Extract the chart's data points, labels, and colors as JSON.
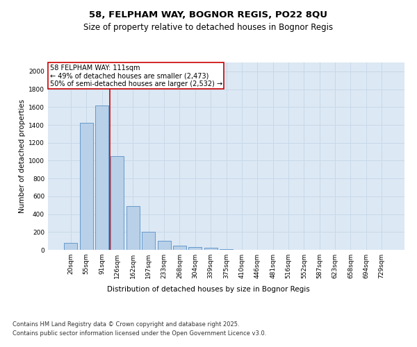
{
  "title_line1": "58, FELPHAM WAY, BOGNOR REGIS, PO22 8QU",
  "title_line2": "Size of property relative to detached houses in Bognor Regis",
  "xlabel": "Distribution of detached houses by size in Bognor Regis",
  "ylabel": "Number of detached properties",
  "categories": [
    "20sqm",
    "55sqm",
    "91sqm",
    "126sqm",
    "162sqm",
    "197sqm",
    "233sqm",
    "268sqm",
    "304sqm",
    "339sqm",
    "375sqm",
    "410sqm",
    "446sqm",
    "481sqm",
    "516sqm",
    "552sqm",
    "587sqm",
    "623sqm",
    "658sqm",
    "694sqm",
    "729sqm"
  ],
  "values": [
    75,
    1420,
    1620,
    1050,
    490,
    200,
    100,
    50,
    30,
    20,
    10,
    0,
    0,
    0,
    0,
    0,
    0,
    0,
    0,
    0,
    0
  ],
  "bar_color": "#b8d0e8",
  "bar_edge_color": "#6699cc",
  "grid_color": "#c8d8e8",
  "background_color": "#dce8f4",
  "annotation_text": "58 FELPHAM WAY: 111sqm\n← 49% of detached houses are smaller (2,473)\n50% of semi-detached houses are larger (2,532) →",
  "vline_color": "#cc0000",
  "vline_x": 2.5,
  "ylim": [
    0,
    2100
  ],
  "yticks": [
    0,
    200,
    400,
    600,
    800,
    1000,
    1200,
    1400,
    1600,
    1800,
    2000
  ],
  "footer_line1": "Contains HM Land Registry data © Crown copyright and database right 2025.",
  "footer_line2": "Contains public sector information licensed under the Open Government Licence v3.0.",
  "title_fontsize": 9.5,
  "subtitle_fontsize": 8.5,
  "axis_label_fontsize": 7.5,
  "tick_fontsize": 6.5,
  "footer_fontsize": 6,
  "annotation_fontsize": 7
}
